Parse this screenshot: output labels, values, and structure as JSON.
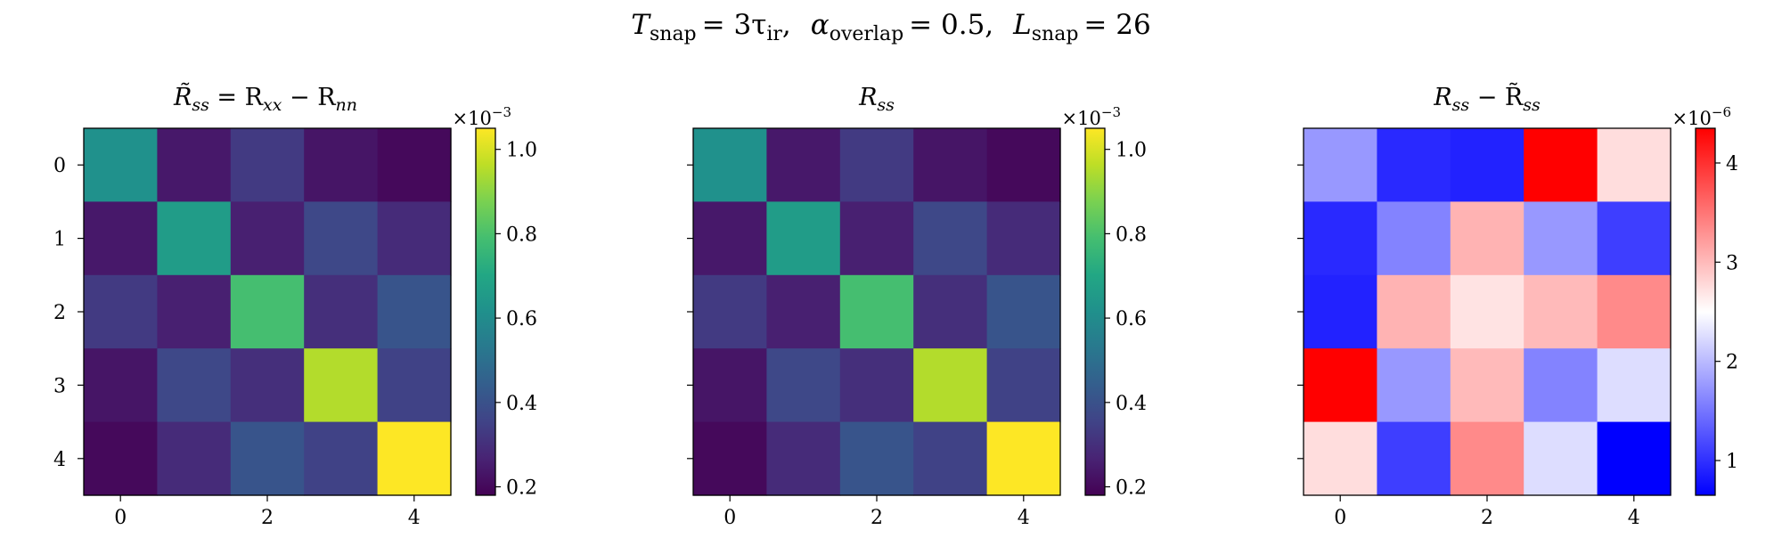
{
  "figure": {
    "suptitle": {
      "t_sym": "T",
      "t_sub": "snap",
      "t_val": "= 3τ",
      "t_val_sub": "ir",
      "t_sep": ",",
      "a_sym": "α",
      "a_sub": "overlap",
      "a_val": "= 0.5,",
      "l_sym": "L",
      "l_sub": "snap",
      "l_val": "= 26"
    }
  },
  "chart_data": [
    {
      "type": "heatmap",
      "title": "R̃ss = Rxx − Rnn",
      "title_parts": {
        "a": "R̃",
        "a_sub": "ss",
        "eq": " = R",
        "b_sub": "xx",
        "minus": " − R",
        "c_sub": "nn"
      },
      "colormap": "viridis",
      "x_ticks": [
        "0",
        "2",
        "4"
      ],
      "y_ticks": [
        "0",
        "1",
        "2",
        "3",
        "4"
      ],
      "show_y_ticklabels": true,
      "vmin": 0.18,
      "vmax": 1.05,
      "colorbar_ticks": [
        "0.2",
        "0.4",
        "0.6",
        "0.8",
        "1.0"
      ],
      "colorbar_tick_values": [
        0.2,
        0.4,
        0.6,
        0.8,
        1.0
      ],
      "scale_label": "×10",
      "scale_exp": "−3",
      "values": [
        [
          0.62,
          0.24,
          0.33,
          0.23,
          0.2
        ],
        [
          0.24,
          0.66,
          0.26,
          0.37,
          0.29
        ],
        [
          0.33,
          0.26,
          0.79,
          0.3,
          0.41
        ],
        [
          0.23,
          0.37,
          0.3,
          0.95,
          0.35
        ],
        [
          0.2,
          0.29,
          0.41,
          0.35,
          1.05
        ]
      ]
    },
    {
      "type": "heatmap",
      "title": "Rss",
      "title_parts": {
        "a": "R",
        "a_sub": "ss"
      },
      "colormap": "viridis",
      "x_ticks": [
        "0",
        "2",
        "4"
      ],
      "y_ticks": [
        "0",
        "1",
        "2",
        "3",
        "4"
      ],
      "show_y_ticklabels": false,
      "vmin": 0.18,
      "vmax": 1.05,
      "colorbar_ticks": [
        "0.2",
        "0.4",
        "0.6",
        "0.8",
        "1.0"
      ],
      "colorbar_tick_values": [
        0.2,
        0.4,
        0.6,
        0.8,
        1.0
      ],
      "scale_label": "×10",
      "scale_exp": "−3",
      "values": [
        [
          0.62,
          0.24,
          0.33,
          0.23,
          0.2
        ],
        [
          0.24,
          0.66,
          0.26,
          0.37,
          0.29
        ],
        [
          0.33,
          0.26,
          0.79,
          0.3,
          0.41
        ],
        [
          0.23,
          0.37,
          0.3,
          0.95,
          0.35
        ],
        [
          0.2,
          0.29,
          0.41,
          0.35,
          1.05
        ]
      ]
    },
    {
      "type": "heatmap",
      "title": "Rss − R̃ss",
      "title_parts": {
        "a": "R",
        "a_sub": "ss",
        "minus": " − R̃",
        "b_sub": "ss"
      },
      "colormap": "bwr",
      "x_ticks": [
        "0",
        "2",
        "4"
      ],
      "y_ticks": [
        "0",
        "1",
        "2",
        "3",
        "4"
      ],
      "show_y_ticklabels": false,
      "vmin": 0.65,
      "vmax": 4.35,
      "colorbar_ticks": [
        "1",
        "2",
        "3",
        "4"
      ],
      "colorbar_tick_values": [
        1,
        2,
        3,
        4
      ],
      "scale_label": "×10",
      "scale_exp": "−6",
      "values": [
        [
          1.75,
          0.95,
          0.9,
          4.35,
          2.75
        ],
        [
          0.95,
          1.6,
          3.05,
          1.75,
          1.1
        ],
        [
          0.9,
          3.05,
          2.7,
          3.0,
          3.35
        ],
        [
          4.35,
          1.75,
          3.0,
          1.6,
          2.25
        ],
        [
          2.75,
          1.1,
          3.35,
          2.25,
          0.65
        ]
      ]
    }
  ]
}
